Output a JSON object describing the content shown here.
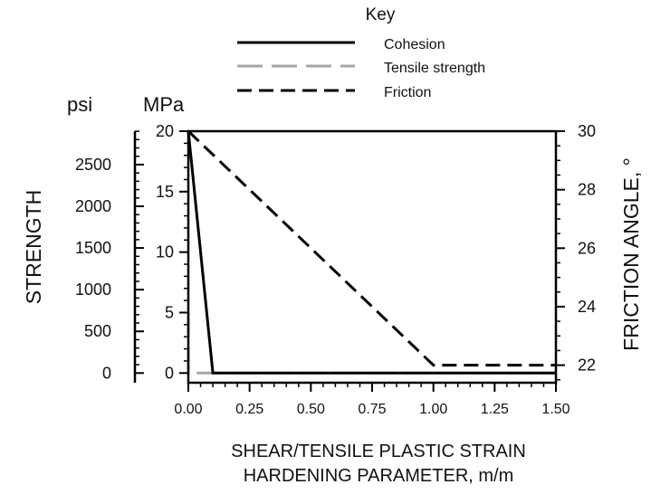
{
  "chart_data": {
    "type": "line",
    "legend": {
      "title": "Key",
      "placement": "top-center",
      "entries": [
        {
          "name": "Cohesion",
          "style": "solid",
          "color": "#000000"
        },
        {
          "name": "Tensile strength",
          "style": "long-dash",
          "color": "#a6a6a6"
        },
        {
          "name": "Friction",
          "style": "dash",
          "color": "#000000"
        }
      ]
    },
    "xlabel_line1": "SHEAR/TENSILE PLASTIC STRAIN",
    "xlabel_line2": "HARDENING PARAMETER, m/m",
    "ylabel_left": "STRENGTH",
    "ylabel_right": "FRICTION ANGLE, °",
    "unit_left_outer": "psi",
    "unit_left_inner": "MPa",
    "xlim": [
      0,
      1.5
    ],
    "ylim_mpa": [
      -0.8,
      20
    ],
    "ylim_deg": [
      21.4,
      30
    ],
    "xticks": [
      "0.00",
      "0.25",
      "0.50",
      "0.75",
      "1.00",
      "1.25",
      "1.50"
    ],
    "xtick_values": [
      0,
      0.25,
      0.5,
      0.75,
      1.0,
      1.25,
      1.5
    ],
    "mpa_ticks": [
      0,
      5,
      10,
      15,
      20
    ],
    "psi_ticks": [
      0,
      500,
      1000,
      1500,
      2000,
      2500
    ],
    "deg_ticks": [
      22,
      24,
      26,
      28,
      30
    ],
    "series": [
      {
        "name": "Cohesion",
        "axis": "MPa",
        "x": [
          0.0,
          0.1,
          1.5
        ],
        "y": [
          20,
          0,
          0
        ]
      },
      {
        "name": "Tensile strength",
        "axis": "MPa",
        "x": [
          0.0,
          0.0,
          1.5
        ],
        "y": [
          5,
          0,
          0
        ]
      },
      {
        "name": "Friction",
        "axis": "deg",
        "x": [
          0.0,
          1.0,
          1.5
        ],
        "y": [
          30,
          22,
          22
        ]
      }
    ]
  }
}
